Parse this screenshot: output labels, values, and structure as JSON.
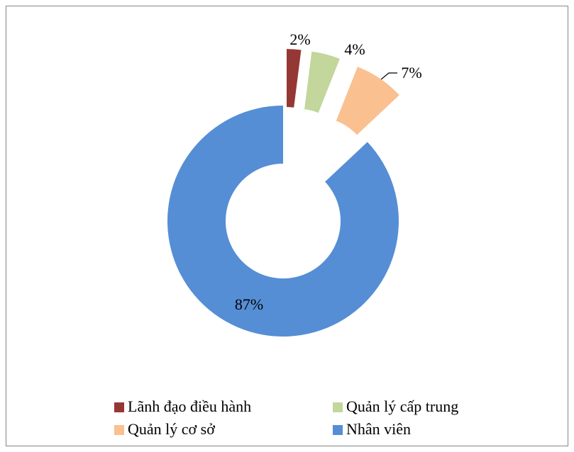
{
  "chart_data": {
    "type": "donut",
    "categories": [
      "Lãnh đạo điều hành",
      "Quản lý cấp trung",
      "Quản lý cơ sở",
      "Nhân viên"
    ],
    "values": [
      2,
      4,
      7,
      87
    ],
    "value_labels": [
      "2%",
      "4%",
      "7%",
      "87%"
    ],
    "colors": [
      "#953735",
      "#c3d69b",
      "#fac090",
      "#558ed5"
    ],
    "legend": "bottom"
  }
}
